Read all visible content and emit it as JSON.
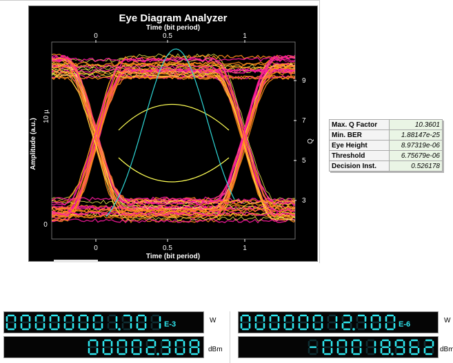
{
  "plot": {
    "title": "Eye Diagram Analyzer",
    "x_label_top": "Time (bit period)",
    "x_label_bottom": "Time (bit period)",
    "y_label_left": "Amplitude (a.u.)",
    "y_label_right": "Q",
    "x_ticks_top": [
      "0",
      "0.5",
      "1"
    ],
    "x_ticks_bottom": [
      "0",
      "0.5",
      "1"
    ],
    "y_ticks_left": [
      "10 µ",
      "0"
    ],
    "y_ticks_right": [
      "9",
      "7",
      "5",
      "3"
    ],
    "colors": {
      "hot": "#ff1aa0",
      "warm": "#ff8c1a",
      "cool": "#ffff55",
      "q_curve": "#2fd9d9",
      "axis": "#ffffff"
    }
  },
  "stats": [
    {
      "label": "Max. Q Factor",
      "value": "10.3601"
    },
    {
      "label": "Min. BER",
      "value": "1.88147e-25"
    },
    {
      "label": "Eye Height",
      "value": "8.97319e-06"
    },
    {
      "label": "Threshold",
      "value": "6.75679e-06"
    },
    {
      "label": "Decision Inst.",
      "value": "0.526178"
    }
  ],
  "meters": [
    {
      "name": "power-meter-1-watts",
      "digits": "00000001.701",
      "exp": "E-3",
      "unit": "W"
    },
    {
      "name": "power-meter-1-dbm",
      "digits": "00002.308",
      "exp": "",
      "unit": "dBm"
    },
    {
      "name": "power-meter-2-watts",
      "digits": "00000012.700",
      "exp": "E-6",
      "unit": "W"
    },
    {
      "name": "power-meter-2-dbm",
      "digits": "-00018.962",
      "exp": "",
      "unit": "dBm"
    }
  ],
  "display_colors": {
    "lit": "#2fe8f0",
    "dim": "#0e2e33"
  }
}
